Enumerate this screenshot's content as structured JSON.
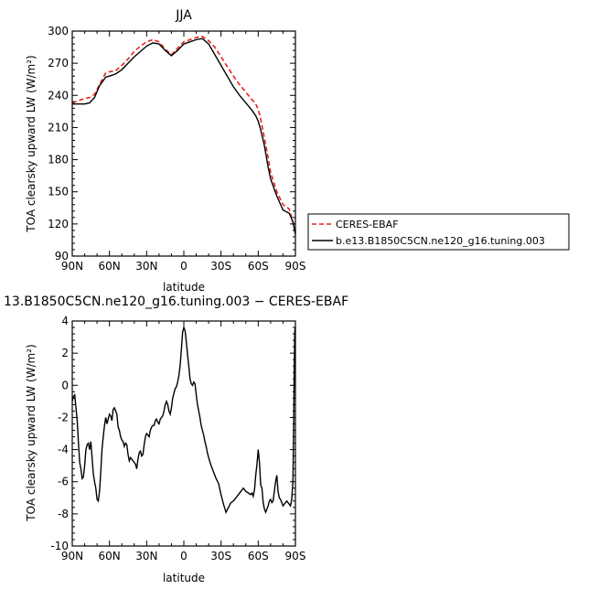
{
  "chart_data": [
    {
      "type": "line",
      "title": "JJA",
      "xlabel": "latitude",
      "ylabel": "TOA clearsky upward LW (W/m²)",
      "xlim": [
        90,
        -90
      ],
      "ylim": [
        90,
        300
      ],
      "xticks": [
        {
          "v": 90,
          "label": "90N"
        },
        {
          "v": 60,
          "label": "60N"
        },
        {
          "v": 30,
          "label": "30N"
        },
        {
          "v": 0,
          "label": "0"
        },
        {
          "v": -30,
          "label": "30S"
        },
        {
          "v": -60,
          "label": "60S"
        },
        {
          "v": -90,
          "label": "90S"
        }
      ],
      "yticks": [
        90,
        120,
        150,
        180,
        210,
        240,
        270,
        300
      ],
      "legend_position": "right",
      "series": [
        {
          "name": "CERES-EBAF",
          "color": "#e8211c",
          "dash": "dashed",
          "x": [
            90,
            85,
            80,
            76,
            72,
            68,
            63,
            60,
            55,
            50,
            45,
            40,
            35,
            30,
            25,
            20,
            15,
            10,
            5,
            0,
            -5,
            -10,
            -15,
            -20,
            -25,
            -30,
            -35,
            -40,
            -45,
            -50,
            -55,
            -58,
            -60,
            -62,
            -65,
            -68,
            -70,
            -75,
            -80,
            -85,
            -88,
            -90
          ],
          "values": [
            233,
            235,
            237,
            238,
            241,
            250,
            261,
            262,
            263,
            268,
            274,
            281,
            286,
            290,
            292,
            290,
            283,
            278,
            284,
            290,
            292,
            294,
            295,
            291,
            285,
            276,
            267,
            258,
            250,
            243,
            236,
            232,
            227,
            218,
            200,
            182,
            168,
            150,
            138,
            134,
            122,
            113
          ]
        },
        {
          "name": "b.e13.B1850C5CN.ne120_g16.tuning.003",
          "color": "#000000",
          "dash": "solid",
          "x": [
            90,
            85,
            80,
            76,
            72,
            68,
            63,
            60,
            55,
            50,
            45,
            40,
            35,
            30,
            25,
            20,
            15,
            10,
            5,
            0,
            -5,
            -10,
            -15,
            -20,
            -25,
            -30,
            -35,
            -40,
            -45,
            -50,
            -55,
            -58,
            -60,
            -62,
            -65,
            -68,
            -70,
            -75,
            -80,
            -85,
            -88,
            -90
          ],
          "values": [
            232,
            232,
            232,
            233,
            238,
            249,
            257,
            258,
            260,
            264,
            270,
            276,
            281,
            286,
            289,
            288,
            282,
            277,
            282,
            288,
            290,
            292,
            293,
            288,
            278,
            268,
            258,
            248,
            240,
            233,
            226,
            221,
            216,
            208,
            193,
            173,
            162,
            146,
            133,
            130,
            122,
            110
          ]
        }
      ]
    },
    {
      "type": "line",
      "title": "13.B1850C5CN.ne120_g16.tuning.003 − CERES-EBAF",
      "xlabel": "latitude",
      "ylabel": "TOA clearsky upward LW (W/m²)",
      "xlim": [
        90,
        -90
      ],
      "ylim": [
        -10,
        4
      ],
      "xticks": [
        {
          "v": 90,
          "label": "90N"
        },
        {
          "v": 60,
          "label": "60N"
        },
        {
          "v": 30,
          "label": "30N"
        },
        {
          "v": 0,
          "label": "0"
        },
        {
          "v": -30,
          "label": "30S"
        },
        {
          "v": -60,
          "label": "60S"
        },
        {
          "v": -90,
          "label": "90S"
        }
      ],
      "yticks": [
        -10,
        -8,
        -6,
        -4,
        -2,
        0,
        2,
        4
      ],
      "series": [
        {
          "color": "#000000",
          "dash": "solid",
          "x": [
            90,
            89,
            88,
            87,
            86,
            85,
            84,
            83,
            82,
            81,
            80,
            79,
            78,
            77,
            76,
            75,
            74,
            73,
            72,
            71,
            70,
            69,
            68,
            67,
            66,
            65,
            64,
            63,
            62,
            61,
            60,
            59,
            58,
            57,
            56,
            55,
            54,
            53,
            52,
            51,
            50,
            49,
            48,
            47,
            46,
            45,
            44,
            43,
            42,
            41,
            40,
            39,
            38,
            37,
            36,
            35,
            34,
            33,
            32,
            31,
            30,
            29,
            28,
            27,
            26,
            25,
            24,
            23,
            22,
            21,
            20,
            19,
            18,
            17,
            16,
            15,
            14,
            13,
            12,
            11,
            10,
            9,
            8,
            7,
            6,
            5,
            4,
            3,
            2,
            1,
            0,
            -1,
            -2,
            -3,
            -4,
            -5,
            -6,
            -7,
            -8,
            -9,
            -10,
            -11,
            -12,
            -13,
            -14,
            -15,
            -16,
            -17,
            -18,
            -19,
            -20,
            -22,
            -24,
            -26,
            -28,
            -30,
            -32,
            -34,
            -36,
            -38,
            -40,
            -42,
            -44,
            -46,
            -48,
            -50,
            -52,
            -54,
            -55,
            -56,
            -57,
            -58,
            -59,
            -60,
            -61,
            -62,
            -63,
            -64,
            -65,
            -66,
            -67,
            -68,
            -69,
            -70,
            -71,
            -72,
            -73,
            -74,
            -75,
            -76,
            -77,
            -78,
            -79,
            -80,
            -81,
            -82,
            -83,
            -84,
            -85,
            -86,
            -87,
            -88,
            -88.5,
            -89,
            -89.5,
            -90
          ],
          "values": [
            -1.0,
            -0.7,
            -0.6,
            -1.4,
            -2.2,
            -3.6,
            -4.8,
            -5.2,
            -5.8,
            -5.7,
            -5.0,
            -4.0,
            -3.7,
            -3.6,
            -4.0,
            -3.5,
            -4.5,
            -5.5,
            -6.0,
            -6.4,
            -7.1,
            -7.2,
            -6.6,
            -5.4,
            -4.0,
            -3.2,
            -2.5,
            -2.0,
            -2.4,
            -2.1,
            -1.8,
            -1.9,
            -2.2,
            -1.5,
            -1.4,
            -1.6,
            -1.8,
            -2.6,
            -2.8,
            -3.2,
            -3.4,
            -3.5,
            -3.8,
            -3.6,
            -3.7,
            -4.3,
            -4.7,
            -4.5,
            -4.6,
            -4.7,
            -4.8,
            -4.9,
            -5.2,
            -4.6,
            -4.2,
            -4.1,
            -4.4,
            -4.3,
            -3.7,
            -3.2,
            -3.0,
            -3.1,
            -3.2,
            -2.8,
            -2.6,
            -2.5,
            -2.5,
            -2.2,
            -2.1,
            -2.3,
            -2.4,
            -2.1,
            -2.0,
            -1.9,
            -1.6,
            -1.2,
            -1.0,
            -1.2,
            -1.6,
            -1.8,
            -1.4,
            -0.8,
            -0.5,
            -0.2,
            -0.1,
            0.2,
            0.6,
            1.2,
            2.2,
            3.3,
            3.6,
            3.4,
            2.7,
            1.9,
            1.2,
            0.4,
            0.1,
            0.0,
            0.2,
            0.1,
            -0.6,
            -1.2,
            -1.6,
            -2.0,
            -2.5,
            -2.8,
            -3.1,
            -3.5,
            -3.8,
            -4.2,
            -4.5,
            -5.0,
            -5.4,
            -5.8,
            -6.1,
            -6.8,
            -7.4,
            -7.9,
            -7.6,
            -7.3,
            -7.2,
            -7.0,
            -6.8,
            -6.6,
            -6.4,
            -6.6,
            -6.7,
            -6.8,
            -6.7,
            -6.9,
            -6.5,
            -5.6,
            -4.9,
            -4.0,
            -4.8,
            -6.2,
            -6.4,
            -7.3,
            -7.7,
            -7.9,
            -7.7,
            -7.5,
            -7.2,
            -7.1,
            -7.3,
            -7.2,
            -6.6,
            -6.0,
            -5.6,
            -6.6,
            -7.0,
            -7.1,
            -7.3,
            -7.5,
            -7.4,
            -7.3,
            -7.2,
            -7.3,
            -7.4,
            -7.5,
            -7.1,
            -6.0,
            -3.0,
            0.5,
            3.4,
            3.6
          ]
        }
      ]
    }
  ]
}
